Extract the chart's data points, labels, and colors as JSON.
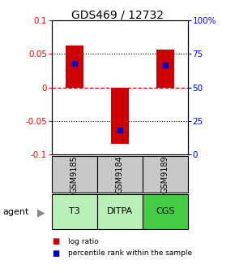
{
  "title": "GDS469 / 12732",
  "samples": [
    "GSM9185",
    "GSM9184",
    "GSM9189"
  ],
  "agents": [
    "T3",
    "DITPA",
    "CGS"
  ],
  "log_ratios": [
    0.063,
    -0.085,
    0.057
  ],
  "percentile_ranks": [
    0.68,
    0.18,
    0.67
  ],
  "ylim": [
    -0.1,
    0.1
  ],
  "yticks_left": [
    -0.1,
    -0.05,
    0,
    0.05,
    0.1
  ],
  "yticks_left_labels": [
    "-0.1",
    "-0.05",
    "0",
    "0.05",
    "0.1"
  ],
  "yticks_right": [
    0,
    25,
    50,
    75,
    100
  ],
  "yticks_right_labels": [
    "0",
    "25",
    "50",
    "75",
    "100%"
  ],
  "bar_color": "#cc0000",
  "percentile_color": "#0000cc",
  "bar_width": 0.4,
  "agent_colors": [
    "#b8f0b8",
    "#b8f0b8",
    "#44cc44"
  ],
  "sample_bg_color": "#c8c8c8",
  "zero_line_color": "#cc0000",
  "legend_log_color": "#cc0000",
  "legend_pct_color": "#0000cc",
  "title_fontsize": 10,
  "tick_fontsize": 7.5,
  "sample_fontsize": 7,
  "agent_fontsize": 8
}
